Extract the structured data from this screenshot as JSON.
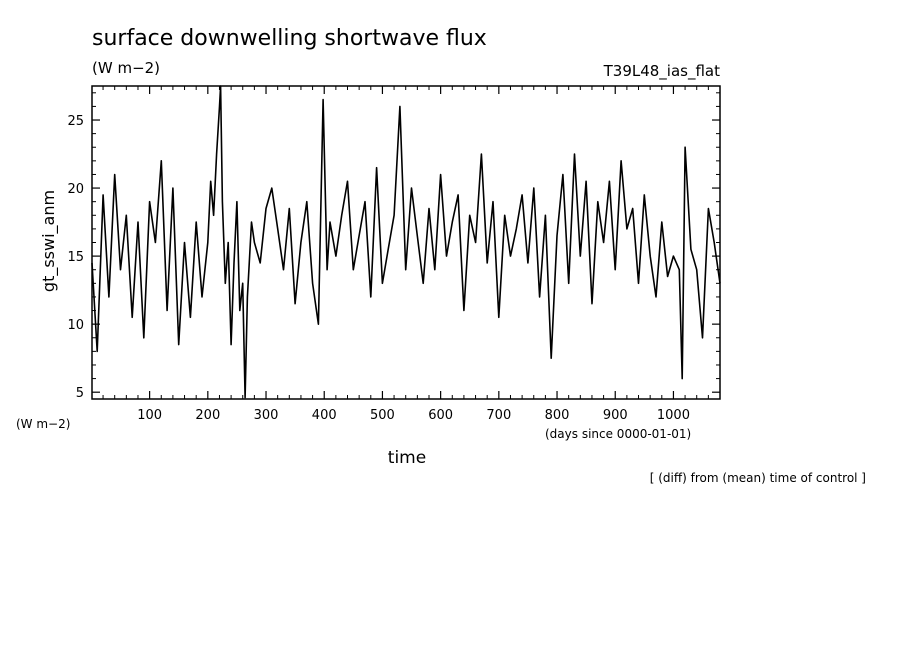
{
  "chart_data": {
    "type": "line",
    "title": "surface downwelling shortwave flux",
    "units_label": "(W m−2)",
    "experiment_label": "T39L48_ias_flat",
    "ylabel": "gt_sswi_anm",
    "xlabel": "time",
    "x_units_label": "(days since 0000-01-01)",
    "y_units_label": "(W m−2)",
    "footnote": "[ (diff) from (mean) time of control ]",
    "xlim": [
      1,
      1080
    ],
    "ylim": [
      4.5,
      27.5
    ],
    "x_ticks_major": [
      100,
      200,
      300,
      400,
      500,
      600,
      700,
      800,
      900,
      1000
    ],
    "x_tick_labels": [
      "100",
      "200",
      "300",
      "400",
      "500",
      "600",
      "700",
      "800",
      "900",
      "1000"
    ],
    "y_ticks_major": [
      5,
      10,
      15,
      20,
      25
    ],
    "y_tick_labels": [
      "5",
      "10",
      "15",
      "20",
      "25"
    ],
    "grid": false,
    "series": [
      {
        "color": "#000000",
        "x": [
          1,
          10,
          20,
          30,
          40,
          50,
          60,
          70,
          80,
          90,
          100,
          110,
          120,
          130,
          140,
          150,
          160,
          170,
          180,
          190,
          200,
          205,
          210,
          215,
          220,
          222,
          225,
          230,
          235,
          240,
          245,
          250,
          255,
          260,
          264,
          268,
          275,
          280,
          290,
          300,
          310,
          320,
          330,
          340,
          350,
          360,
          370,
          380,
          390,
          398,
          405,
          410,
          420,
          430,
          440,
          450,
          460,
          470,
          480,
          490,
          500,
          510,
          520,
          530,
          540,
          550,
          560,
          570,
          580,
          590,
          600,
          610,
          620,
          630,
          640,
          650,
          660,
          670,
          680,
          690,
          700,
          710,
          720,
          730,
          740,
          750,
          760,
          770,
          780,
          790,
          800,
          810,
          820,
          830,
          840,
          850,
          860,
          870,
          880,
          890,
          900,
          910,
          920,
          930,
          940,
          950,
          960,
          970,
          980,
          990,
          1000,
          1010,
          1015,
          1020,
          1030,
          1040,
          1050,
          1060,
          1070,
          1080
        ],
        "y": [
          14.5,
          8,
          19.5,
          12,
          21,
          14,
          18,
          10.5,
          17.5,
          9,
          19,
          16,
          22,
          11,
          20,
          8.5,
          16,
          10.5,
          17.5,
          12,
          16,
          20.5,
          18,
          22.5,
          26,
          27.5,
          19,
          13,
          16,
          8.5,
          14.5,
          19,
          11,
          13,
          4.6,
          12,
          17.5,
          16,
          14.5,
          18.5,
          20,
          17,
          14,
          18.5,
          11.5,
          16,
          19,
          13,
          10,
          26.5,
          14,
          17.5,
          15,
          18,
          20.5,
          14,
          16.5,
          19,
          12,
          21.5,
          13,
          15.5,
          18,
          26,
          14,
          20,
          16.5,
          13,
          18.5,
          14,
          21,
          15,
          17.5,
          19.5,
          11,
          18,
          16,
          22.5,
          14.5,
          19,
          10.5,
          18,
          15,
          17,
          19.5,
          14.5,
          20,
          12,
          18,
          7.5,
          16.5,
          21,
          13,
          22.5,
          15,
          20.5,
          11.5,
          19,
          16,
          20.5,
          14,
          22,
          17,
          18.5,
          13,
          19.5,
          15,
          12,
          17.5,
          13.5,
          15,
          14,
          6,
          23,
          15.5,
          14,
          9,
          18.5,
          16,
          13
        ]
      }
    ]
  }
}
